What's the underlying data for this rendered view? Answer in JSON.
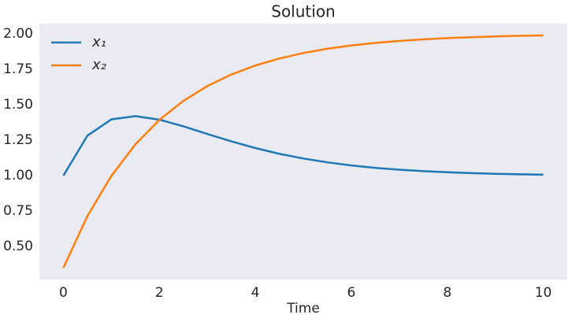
{
  "chart_data": {
    "type": "line",
    "title": "Solution",
    "xlabel": "Time",
    "x": [
      0,
      0.5,
      1,
      1.5,
      2,
      2.5,
      3,
      3.5,
      4,
      4.5,
      5,
      5.5,
      6,
      6.5,
      7,
      7.5,
      8,
      8.5,
      9,
      9.5,
      10
    ],
    "series": [
      {
        "name": "x₁",
        "color": "#1f77b4",
        "values": [
          1,
          1.282,
          1.397,
          1.42,
          1.395,
          1.348,
          1.294,
          1.242,
          1.195,
          1.154,
          1.121,
          1.094,
          1.072,
          1.055,
          1.042,
          1.032,
          1.024,
          1.018,
          1.013,
          1.01,
          1.007
        ]
      },
      {
        "name": "x₂",
        "color": "#ff7f0e",
        "values": [
          0.35,
          0.715,
          0.999,
          1.221,
          1.393,
          1.527,
          1.632,
          1.713,
          1.777,
          1.826,
          1.865,
          1.895,
          1.918,
          1.936,
          1.95,
          1.961,
          1.97,
          1.976,
          1.982,
          1.986,
          1.989
        ]
      }
    ],
    "xlim": [
      -0.5,
      10.5
    ],
    "xticks": [
      0,
      2,
      4,
      6,
      8,
      10
    ],
    "ylim": [
      0.268,
      2.072
    ],
    "yticks": [
      {
        "value": 0.5,
        "label": "0.50"
      },
      {
        "value": 0.75,
        "label": "0.75"
      },
      {
        "value": 1,
        "label": "1.00"
      },
      {
        "value": 1.25,
        "label": "1.25"
      },
      {
        "value": 1.5,
        "label": "1.50"
      },
      {
        "value": 1.75,
        "label": "1.75"
      },
      {
        "value": 2,
        "label": "2.00"
      }
    ],
    "grid": false,
    "legend": "upper left"
  }
}
